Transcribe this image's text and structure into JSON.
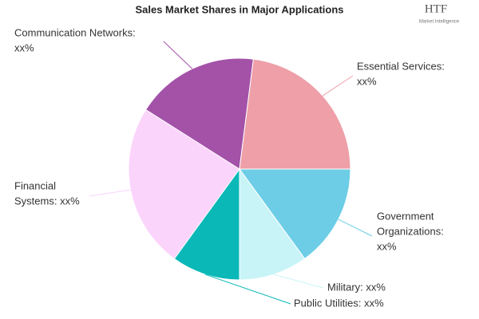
{
  "chart_data": {
    "type": "pie",
    "title": "Sales Market Shares in Major Applications",
    "logo": {
      "text": "HTF",
      "subtitle": "Market Intelligence"
    },
    "labels": [
      [
        "Government",
        "Organizations:",
        "xx%"
      ],
      [
        "Military: xx%"
      ],
      [
        "Public Utilities: xx%"
      ],
      [
        "Financial",
        "Systems: xx%"
      ],
      [
        "Communication Networks:",
        "xx%"
      ],
      [
        "Essential Services:",
        "xx%"
      ]
    ],
    "values": [
      15,
      10,
      10,
      24,
      18,
      23
    ],
    "colors": [
      "#6dcde6",
      "#c8f4f7",
      "#0bb8b8",
      "#fbd4fb",
      "#a352a8",
      "#ee9fa8"
    ]
  }
}
